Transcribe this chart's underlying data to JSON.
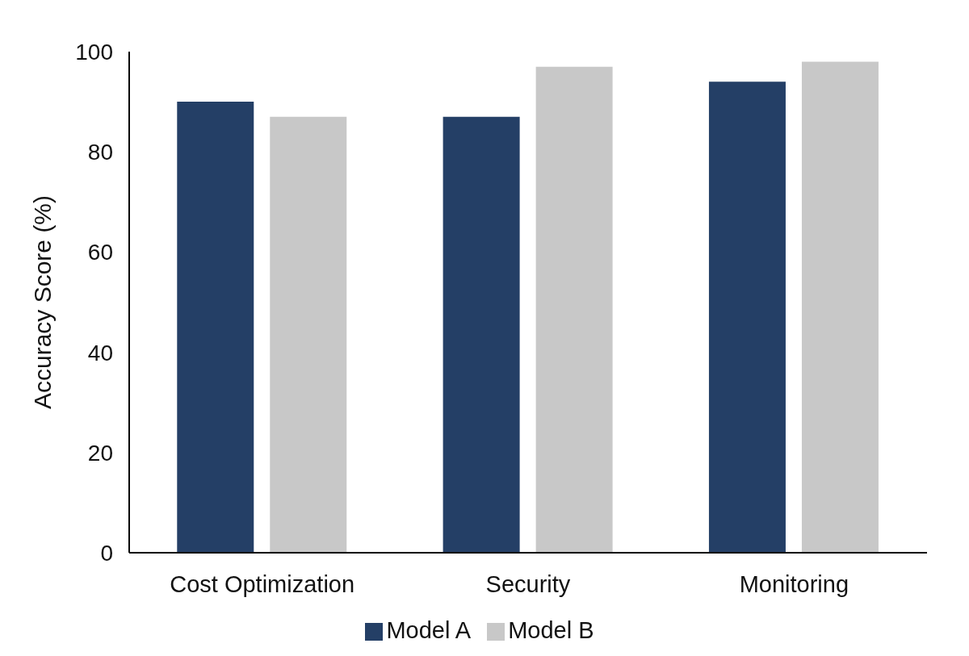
{
  "chart_data": {
    "type": "bar",
    "ylabel": "Accuracy Score (%)",
    "categories": [
      "Cost Optimization",
      "Security",
      "Monitoring"
    ],
    "series": [
      {
        "name": "Model A",
        "color": "#243f66",
        "values": [
          90,
          87,
          94
        ]
      },
      {
        "name": "Model B",
        "color": "#c8c8c8",
        "values": [
          87,
          97,
          98
        ]
      }
    ],
    "ylim": [
      0,
      100
    ],
    "yticks": [
      0,
      20,
      40,
      60,
      80,
      100
    ],
    "grid": false,
    "legend": "bottom"
  }
}
